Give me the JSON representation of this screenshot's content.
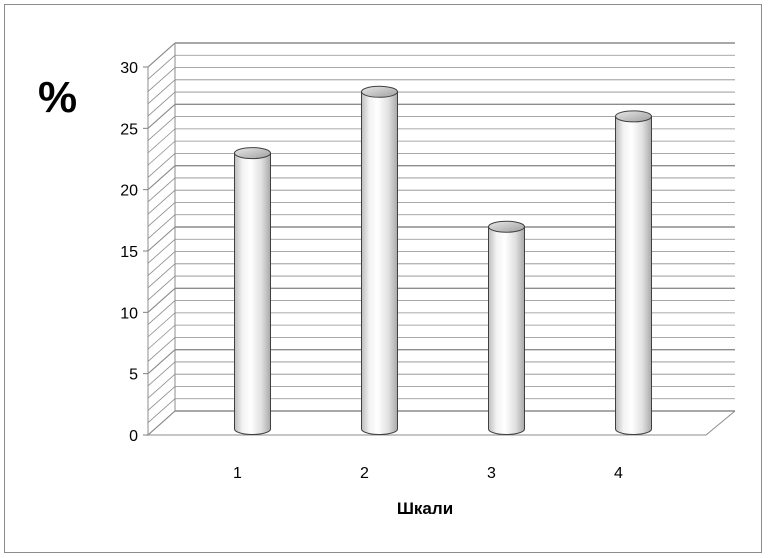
{
  "chart_data": {
    "type": "bar",
    "style": "3d-cylinder",
    "title": "",
    "ylabel": "%",
    "xlabel": "Шкали",
    "categories": [
      "1",
      "2",
      "3",
      "4"
    ],
    "values": [
      22,
      27,
      16,
      25
    ],
    "ylim": [
      0,
      30
    ],
    "yticks": [
      "0",
      "5",
      "10",
      "15",
      "20",
      "25",
      "30"
    ],
    "grid": true,
    "legend": "none",
    "colors": {
      "bar": "#e6e6e6",
      "bar_top": "#b8b8b8",
      "grid": "#8c8c8c",
      "axis": "#808080"
    }
  }
}
